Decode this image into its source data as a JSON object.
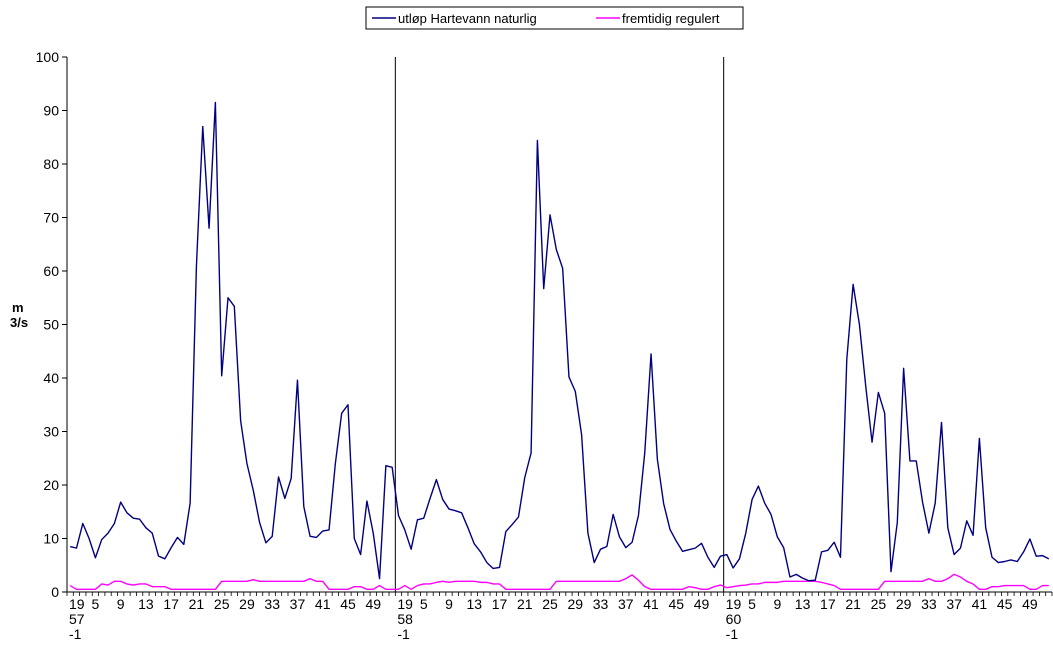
{
  "chart_data": {
    "type": "line",
    "ylabel_line1": "m",
    "ylabel_line2": "3/s",
    "ylim": [
      0,
      100
    ],
    "yticks": [
      0,
      10,
      20,
      30,
      40,
      50,
      60,
      70,
      80,
      90,
      100
    ],
    "legend_position": "top",
    "grid": false,
    "week_tick_labels": [
      {
        "year_line1": "19",
        "year_line2": "57",
        "year_line3": "-1",
        "weeks": [
          "5",
          "9",
          "13",
          "17",
          "21",
          "25",
          "29",
          "33",
          "37",
          "41",
          "45",
          "49"
        ]
      },
      {
        "year_line1": "19",
        "year_line2": "58",
        "year_line3": "-1",
        "weeks": [
          "5",
          "9",
          "13",
          "17",
          "21",
          "25",
          "29",
          "33",
          "37",
          "41",
          "45",
          "49"
        ]
      },
      {
        "year_line1": "19",
        "year_line2": "60",
        "year_line3": "-1",
        "weeks": [
          "5",
          "9",
          "13",
          "17",
          "21",
          "25",
          "29",
          "33",
          "37",
          "41",
          "45",
          "49"
        ]
      }
    ],
    "series": [
      {
        "name": "utløp Hartevann naturlig",
        "color": "#000080",
        "values": [
          8.5,
          8.2,
          12.8,
          10,
          6.4,
          9.8,
          11,
          12.8,
          16.8,
          14.8,
          13.8,
          13.6,
          12,
          11,
          6.7,
          6.2,
          8.3,
          10.2,
          8.9,
          16.6,
          61,
          87,
          68,
          91.5,
          40.4,
          55,
          53.4,
          32,
          24,
          19,
          13,
          9.2,
          10.4,
          21.5,
          17.5,
          21.2,
          39.6,
          16,
          10.4,
          10.2,
          11.4,
          11.6,
          24,
          33.4,
          35,
          10,
          7,
          17,
          11,
          2.5,
          23.6,
          23.3,
          14.3,
          11.6,
          8,
          13.5,
          13.8,
          17.5,
          21,
          17.3,
          15.5,
          15.2,
          14.8,
          12,
          9,
          7.5,
          5.5,
          4.4,
          4.6,
          11.3,
          12.6,
          14,
          21.4,
          26,
          84.4,
          56.7,
          70.5,
          64,
          60.5,
          40.2,
          37.5,
          29.4,
          11,
          5.5,
          8,
          8.5,
          14.5,
          10.3,
          8.3,
          9.3,
          14.3,
          26,
          44.5,
          24.8,
          16.5,
          11.7,
          9.5,
          7.6,
          7.9,
          8.2,
          9.1,
          6.5,
          4.6,
          6.7,
          7,
          4.5,
          6.2,
          11,
          17.3,
          19.8,
          16.6,
          14.5,
          10.3,
          8.3,
          2.8,
          3.3,
          2.6,
          2.1,
          2.2,
          7.5,
          7.8,
          9.3,
          6.5,
          43.5,
          57.5,
          50,
          38.5,
          28,
          37.3,
          33.4,
          3.8,
          13,
          41.8,
          24.5,
          24.5,
          16.8,
          11,
          16.6,
          31.7,
          12,
          7,
          8.2,
          13.3,
          10.6,
          28.7,
          12,
          6.5,
          5.5,
          5.7,
          6,
          5.7,
          7.5,
          9.9,
          6.7,
          6.8,
          6.2
        ]
      },
      {
        "name": "fremtidig regulert",
        "color": "#FF00FF",
        "values": [
          1.2,
          0.5,
          0.5,
          0.5,
          0.5,
          1.5,
          1.3,
          2,
          2,
          1.5,
          1.3,
          1.5,
          1.5,
          1,
          1,
          1,
          0.5,
          0.5,
          0.5,
          0.5,
          0.5,
          0.5,
          0.5,
          0.5,
          2,
          2,
          2,
          2,
          2,
          2.3,
          2,
          2,
          2,
          2,
          2,
          2,
          2,
          2,
          2.5,
          2,
          2,
          0.5,
          0.5,
          0.5,
          0.5,
          1,
          1,
          0.5,
          0.5,
          1.2,
          0.5,
          0.5,
          0.5,
          1.2,
          0.5,
          1.2,
          1.5,
          1.5,
          1.8,
          2,
          1.8,
          2,
          2,
          2,
          2,
          1.8,
          1.8,
          1.5,
          1.5,
          0.5,
          0.5,
          0.5,
          0.5,
          0.5,
          0.5,
          0.5,
          0.5,
          2,
          2,
          2,
          2,
          2,
          2,
          2,
          2,
          2,
          2,
          2,
          2.5,
          3.2,
          2.2,
          1,
          0.5,
          0.5,
          0.5,
          0.5,
          0.5,
          0.5,
          1,
          0.8,
          0.5,
          0.5,
          1,
          1.3,
          0.8,
          1,
          1.2,
          1.3,
          1.5,
          1.5,
          1.8,
          1.8,
          1.8,
          2,
          2,
          2,
          2,
          2,
          2,
          1.8,
          1.5,
          1.2,
          0.5,
          0.5,
          0.5,
          0.5,
          0.5,
          0.5,
          0.5,
          2,
          2,
          2,
          2,
          2,
          2,
          2,
          2.5,
          2,
          2,
          2.5,
          3.3,
          2.8,
          2,
          1.5,
          0.5,
          0.5,
          1,
          1,
          1.2,
          1.2,
          1.2,
          1.2,
          0.5,
          0.5,
          1.2,
          1.2
        ]
      }
    ]
  }
}
